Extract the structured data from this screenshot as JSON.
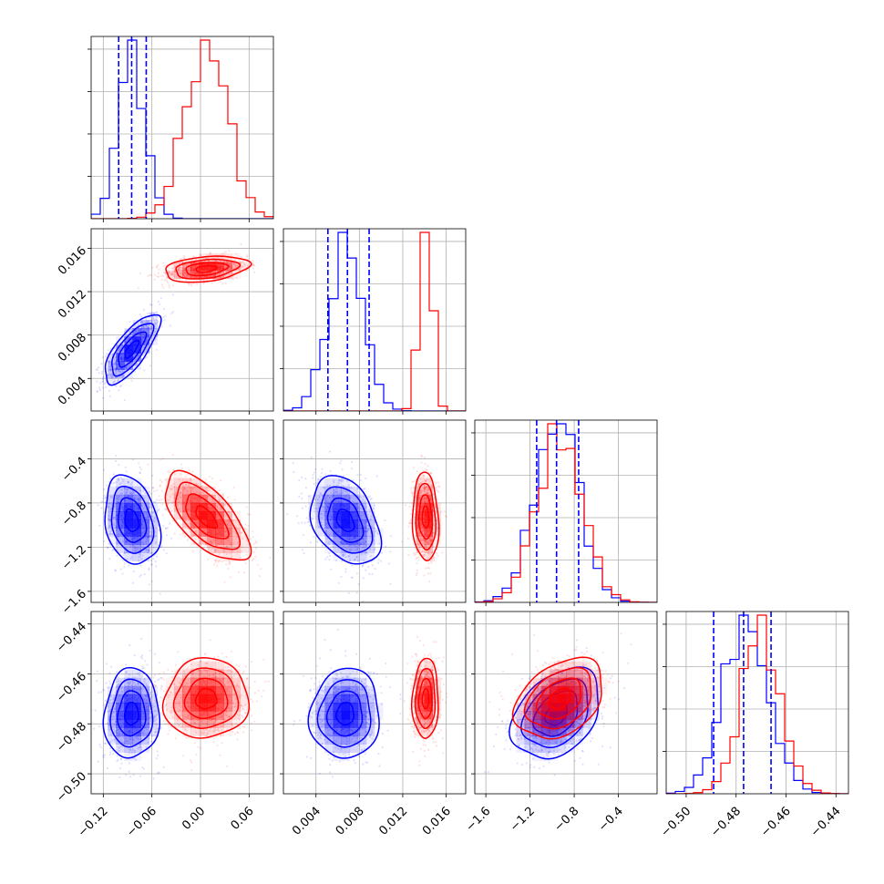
{
  "colors": {
    "series_a": "#0000ff",
    "series_b": "#ff0000",
    "grid": "#b0b0b0"
  },
  "chart_data": {
    "type": "corner",
    "grid": true,
    "params": [
      {
        "id": "p0",
        "lim": [
          -0.135,
          0.09
        ],
        "ticks": [
          -0.12,
          -0.06,
          0.0,
          0.06
        ],
        "tick_labels": [
          "−0.12",
          "−0.06",
          "0.00",
          "0.06"
        ]
      },
      {
        "id": "p1",
        "lim": [
          0.001,
          0.0178
        ],
        "ticks": [
          0.004,
          0.008,
          0.012,
          0.016
        ],
        "tick_labels": [
          "0.004",
          "0.008",
          "0.012",
          "0.016"
        ]
      },
      {
        "id": "p2",
        "lim": [
          -1.7,
          -0.05
        ],
        "ticks": [
          -1.6,
          -1.2,
          -0.8,
          -0.4
        ],
        "tick_labels": [
          "−1.6",
          "−1.2",
          "−0.8",
          "−0.4"
        ]
      },
      {
        "id": "p3",
        "lim": [
          -0.508,
          -0.435
        ],
        "ticks": [
          -0.5,
          -0.48,
          -0.46,
          -0.44
        ],
        "tick_labels": [
          "−0.50",
          "−0.48",
          "−0.46",
          "−0.44"
        ]
      }
    ],
    "series": [
      {
        "color": "#0000ff",
        "mean": [
          -0.085,
          0.0067,
          -0.96,
          -0.476
        ],
        "sd": [
          0.017,
          0.0016,
          0.2,
          0.009
        ],
        "corr": [
          [
            1,
            0.75,
            -0.25,
            0.05
          ],
          [
            0.75,
            1,
            -0.35,
            0.05
          ],
          [
            -0.25,
            -0.35,
            1,
            0.35
          ],
          [
            0.05,
            0.05,
            0.35,
            1
          ]
        ],
        "quantiles": [
          [
            -0.101,
            -0.085,
            -0.067
          ],
          [
            0.0051,
            0.0069,
            0.0089
          ],
          [
            -1.14,
            -0.96,
            -0.76
          ],
          [
            -0.489,
            -0.477,
            -0.466
          ]
        ]
      },
      {
        "color": "#ff0000",
        "mean": [
          0.007,
          0.0141,
          -0.93,
          -0.47
        ],
        "sd": [
          0.026,
          0.0006,
          0.2,
          0.008
        ],
        "corr": [
          [
            1,
            0.3,
            -0.65,
            0.05
          ],
          [
            0.3,
            1,
            -0.1,
            0.05
          ],
          [
            -0.65,
            -0.1,
            1,
            0.35
          ],
          [
            0.05,
            0.05,
            0.35,
            1
          ]
        ]
      }
    ],
    "hist_ymax": [
      [
        [
          -0.135,
          0.0
        ],
        [
          -0.124,
          0.02
        ],
        [
          -0.113,
          0.14
        ],
        [
          -0.102,
          0.55
        ],
        [
          -0.096,
          0.97
        ],
        [
          -0.088,
          1.0
        ],
        [
          -0.08,
          0.55
        ],
        [
          -0.07,
          0.5
        ],
        [
          -0.06,
          0.25
        ],
        [
          -0.05,
          0.05
        ],
        [
          -0.035,
          0.02
        ],
        [
          -0.02,
          0.0
        ]
      ],
      [
        [
          -0.05,
          0.0
        ],
        [
          -0.03,
          0.02
        ],
        [
          -0.018,
          0.22
        ],
        [
          -0.008,
          0.58
        ],
        [
          0.002,
          0.88
        ],
        [
          0.008,
          0.92
        ],
        [
          0.016,
          0.8
        ],
        [
          0.028,
          0.55
        ],
        [
          0.042,
          0.3
        ],
        [
          0.056,
          0.14
        ],
        [
          0.07,
          0.06
        ],
        [
          0.085,
          0.01
        ]
      ]
    ]
  }
}
